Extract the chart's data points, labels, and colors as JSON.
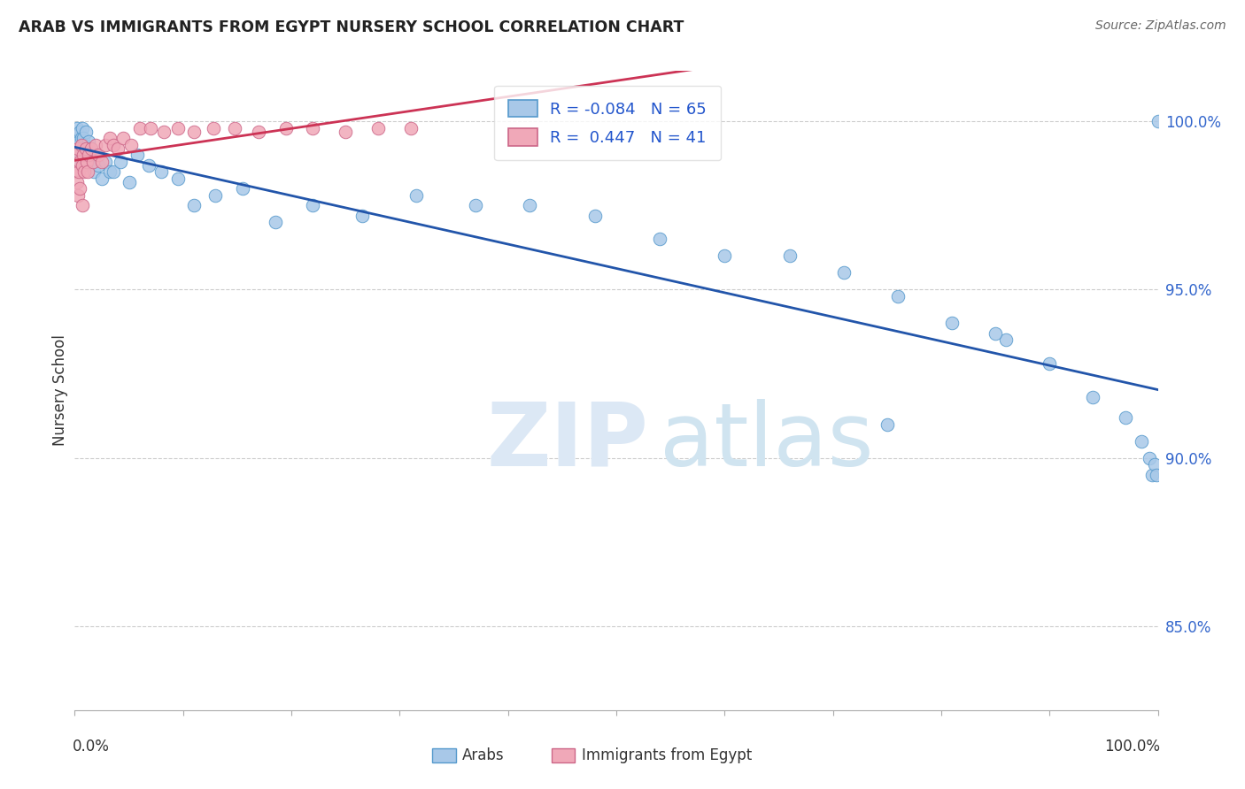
{
  "title": "ARAB VS IMMIGRANTS FROM EGYPT NURSERY SCHOOL CORRELATION CHART",
  "source": "Source: ZipAtlas.com",
  "ylabel": "Nursery School",
  "ytick_labels": [
    "100.0%",
    "95.0%",
    "90.0%",
    "85.0%"
  ],
  "ytick_values": [
    1.0,
    0.95,
    0.9,
    0.85
  ],
  "xlim": [
    0.0,
    1.0
  ],
  "ylim": [
    0.825,
    1.015
  ],
  "legend_r_arab": "-0.084",
  "legend_n_arab": "65",
  "legend_r_egypt": "0.447",
  "legend_n_egypt": "41",
  "arab_color": "#a8c8e8",
  "arab_edge_color": "#5599cc",
  "egypt_color": "#f0a8b8",
  "egypt_edge_color": "#cc6688",
  "arab_line_color": "#2255aa",
  "egypt_line_color": "#cc3355",
  "watermark_zip": "ZIP",
  "watermark_atlas": "atlas",
  "arab_x": [
    0.001,
    0.002,
    0.002,
    0.003,
    0.003,
    0.004,
    0.004,
    0.005,
    0.005,
    0.006,
    0.006,
    0.007,
    0.007,
    0.008,
    0.008,
    0.009,
    0.01,
    0.01,
    0.011,
    0.012,
    0.013,
    0.014,
    0.015,
    0.016,
    0.018,
    0.02,
    0.022,
    0.025,
    0.028,
    0.032,
    0.036,
    0.042,
    0.05,
    0.058,
    0.068,
    0.08,
    0.095,
    0.11,
    0.13,
    0.155,
    0.185,
    0.22,
    0.265,
    0.315,
    0.37,
    0.42,
    0.48,
    0.54,
    0.6,
    0.66,
    0.71,
    0.76,
    0.81,
    0.86,
    0.9,
    0.94,
    0.97,
    0.985,
    0.992,
    0.995,
    0.997,
    0.999,
    1.0,
    0.85,
    0.75
  ],
  "arab_y": [
    0.995,
    0.998,
    0.993,
    0.99,
    0.996,
    0.988,
    0.994,
    0.991,
    0.997,
    0.989,
    0.995,
    0.992,
    0.998,
    0.99,
    0.995,
    0.993,
    0.997,
    0.988,
    0.992,
    0.99,
    0.994,
    0.988,
    0.992,
    0.99,
    0.985,
    0.99,
    0.987,
    0.983,
    0.988,
    0.985,
    0.985,
    0.988,
    0.982,
    0.99,
    0.987,
    0.985,
    0.983,
    0.975,
    0.978,
    0.98,
    0.97,
    0.975,
    0.972,
    0.978,
    0.975,
    0.975,
    0.972,
    0.965,
    0.96,
    0.96,
    0.955,
    0.948,
    0.94,
    0.935,
    0.928,
    0.918,
    0.912,
    0.905,
    0.9,
    0.895,
    0.898,
    0.895,
    1.0,
    0.937,
    0.91
  ],
  "egypt_x": [
    0.001,
    0.002,
    0.002,
    0.003,
    0.003,
    0.004,
    0.005,
    0.005,
    0.006,
    0.007,
    0.007,
    0.008,
    0.009,
    0.01,
    0.011,
    0.012,
    0.013,
    0.015,
    0.017,
    0.019,
    0.022,
    0.025,
    0.028,
    0.032,
    0.036,
    0.04,
    0.045,
    0.052,
    0.06,
    0.07,
    0.082,
    0.095,
    0.11,
    0.128,
    0.148,
    0.17,
    0.195,
    0.22,
    0.25,
    0.28,
    0.31
  ],
  "egypt_y": [
    0.985,
    0.982,
    0.99,
    0.978,
    0.992,
    0.985,
    0.988,
    0.98,
    0.993,
    0.987,
    0.975,
    0.99,
    0.985,
    0.992,
    0.988,
    0.985,
    0.99,
    0.992,
    0.988,
    0.993,
    0.99,
    0.988,
    0.993,
    0.995,
    0.993,
    0.992,
    0.995,
    0.993,
    0.998,
    0.998,
    0.997,
    0.998,
    0.997,
    0.998,
    0.998,
    0.997,
    0.998,
    0.998,
    0.997,
    0.998,
    0.998
  ]
}
